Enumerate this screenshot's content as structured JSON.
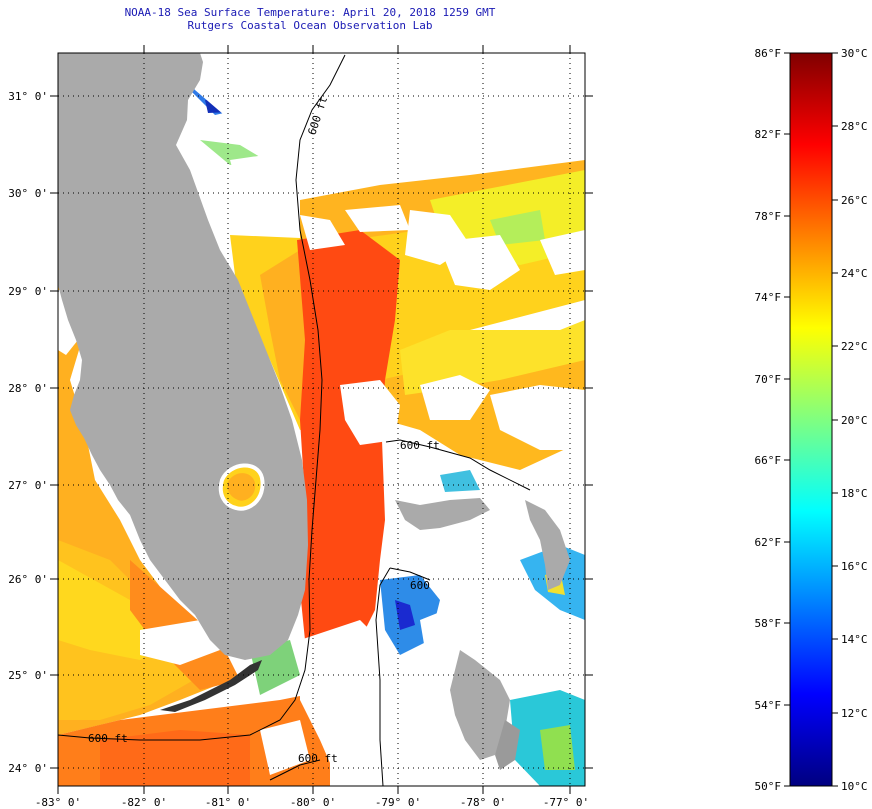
{
  "header": {
    "title": "NOAA-18 Sea Surface Temperature:  April 20, 2018 1259 GMT",
    "subtitle": "Rutgers Coastal Ocean Observation Lab"
  },
  "map": {
    "lat_labels": [
      "31° 0'",
      "30° 0'",
      "29° 0'",
      "28° 0'",
      "27° 0'",
      "26° 0'",
      "25° 0'",
      "24° 0'"
    ],
    "lon_labels": [
      "-83° 0'",
      "-82° 0'",
      "-81° 0'",
      "-80° 0'",
      "-79° 0'",
      "-78° 0'",
      "-77° 0'"
    ],
    "contour_labels": [
      "600 ft",
      "600 ft",
      "600",
      "600 ft",
      "600 ft"
    ],
    "colors": {
      "land": "#aaaaaa",
      "cloud": "#ffffff",
      "warm_core": "#ff4a12",
      "warm": "#ff8a1e",
      "mild": "#ffd21c",
      "cool": "#f6f02a"
    }
  },
  "legend": {
    "fahrenheit_labels": [
      "86°F",
      "82°F",
      "78°F",
      "74°F",
      "70°F",
      "66°F",
      "62°F",
      "58°F",
      "54°F",
      "50°F"
    ],
    "celsius_labels": [
      "30°C",
      "28°C",
      "26°C",
      "24°C",
      "22°C",
      "20°C",
      "18°C",
      "16°C",
      "14°C",
      "12°C",
      "10°C"
    ],
    "gradient": [
      "#800000",
      "#ff0000",
      "#ff8000",
      "#ffff00",
      "#80ff80",
      "#00ffff",
      "#0080ff",
      "#0000ff",
      "#000080"
    ]
  }
}
